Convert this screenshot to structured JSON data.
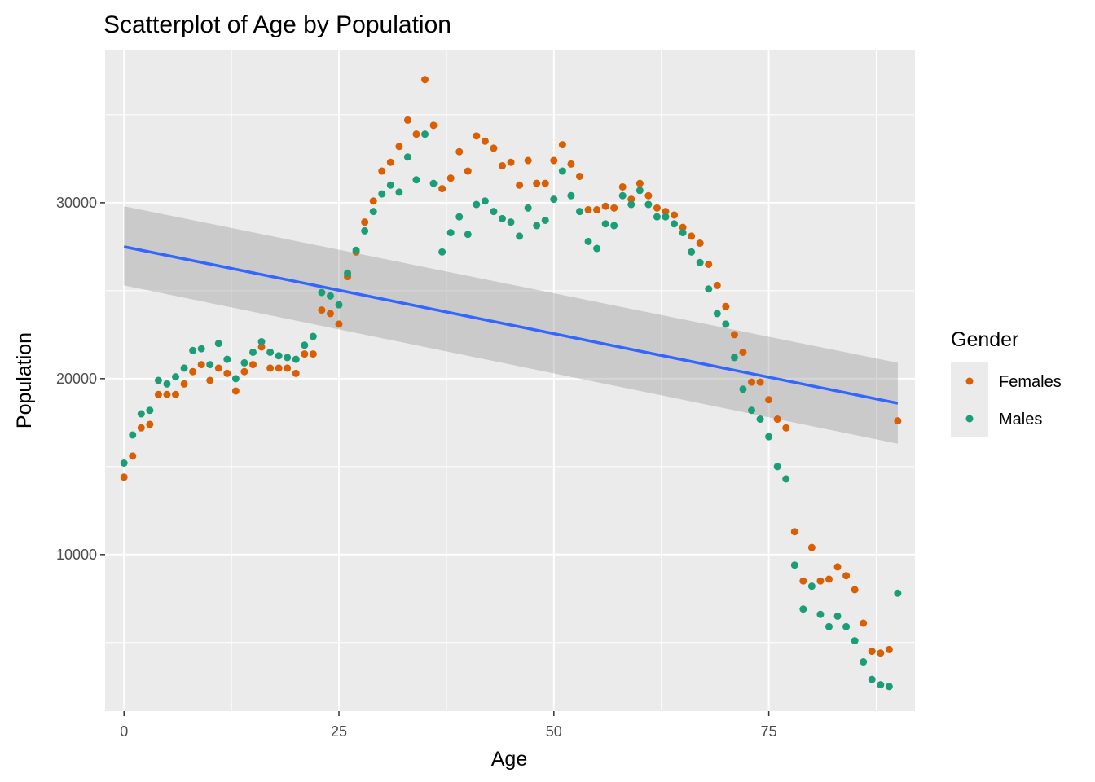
{
  "chart_data": {
    "type": "scatter",
    "title": "Scatterplot of Age by Population",
    "xlabel": "Age",
    "ylabel": "Population",
    "xlim": [
      -2.2,
      92
    ],
    "ylim": [
      1100,
      38700
    ],
    "x_ticks": [
      0,
      25,
      50,
      75
    ],
    "y_ticks": [
      10000,
      20000,
      30000
    ],
    "grid": true,
    "legend": {
      "title": "Gender",
      "position": "right"
    },
    "series": [
      {
        "name": "Females",
        "color": "#D95F02",
        "points": [
          [
            0,
            14400
          ],
          [
            1,
            15600
          ],
          [
            2,
            17200
          ],
          [
            3,
            17400
          ],
          [
            4,
            19100
          ],
          [
            5,
            19100
          ],
          [
            6,
            19100
          ],
          [
            7,
            19700
          ],
          [
            8,
            20400
          ],
          [
            9,
            20800
          ],
          [
            10,
            19900
          ],
          [
            11,
            20600
          ],
          [
            12,
            20300
          ],
          [
            13,
            19300
          ],
          [
            14,
            20400
          ],
          [
            15,
            20800
          ],
          [
            16,
            21800
          ],
          [
            17,
            20600
          ],
          [
            18,
            20600
          ],
          [
            19,
            20600
          ],
          [
            20,
            20300
          ],
          [
            21,
            21400
          ],
          [
            22,
            21400
          ],
          [
            23,
            23900
          ],
          [
            24,
            23700
          ],
          [
            25,
            23100
          ],
          [
            26,
            25800
          ],
          [
            27,
            27200
          ],
          [
            28,
            28900
          ],
          [
            29,
            30100
          ],
          [
            30,
            31800
          ],
          [
            31,
            32300
          ],
          [
            32,
            33200
          ],
          [
            33,
            34700
          ],
          [
            34,
            33900
          ],
          [
            35,
            37000
          ],
          [
            36,
            34400
          ],
          [
            37,
            30800
          ],
          [
            38,
            31400
          ],
          [
            39,
            32900
          ],
          [
            40,
            31800
          ],
          [
            41,
            33800
          ],
          [
            42,
            33500
          ],
          [
            43,
            33100
          ],
          [
            44,
            32100
          ],
          [
            45,
            32300
          ],
          [
            46,
            31000
          ],
          [
            47,
            32400
          ],
          [
            48,
            31100
          ],
          [
            49,
            31100
          ],
          [
            50,
            32400
          ],
          [
            51,
            33300
          ],
          [
            52,
            32200
          ],
          [
            53,
            31500
          ],
          [
            54,
            29600
          ],
          [
            55,
            29600
          ],
          [
            56,
            29800
          ],
          [
            57,
            29700
          ],
          [
            58,
            30900
          ],
          [
            59,
            30200
          ],
          [
            60,
            31100
          ],
          [
            61,
            30400
          ],
          [
            62,
            29700
          ],
          [
            63,
            29500
          ],
          [
            64,
            29300
          ],
          [
            65,
            28600
          ],
          [
            66,
            28100
          ],
          [
            67,
            27700
          ],
          [
            68,
            26500
          ],
          [
            69,
            25300
          ],
          [
            70,
            24100
          ],
          [
            71,
            22500
          ],
          [
            72,
            21500
          ],
          [
            73,
            19800
          ],
          [
            74,
            19800
          ],
          [
            75,
            18800
          ],
          [
            76,
            17700
          ],
          [
            77,
            17200
          ],
          [
            78,
            11300
          ],
          [
            79,
            8500
          ],
          [
            80,
            10400
          ],
          [
            81,
            8500
          ],
          [
            82,
            8600
          ],
          [
            83,
            9300
          ],
          [
            84,
            8800
          ],
          [
            85,
            8000
          ],
          [
            86,
            6100
          ],
          [
            87,
            4500
          ],
          [
            88,
            4400
          ],
          [
            89,
            4600
          ],
          [
            90,
            17600
          ]
        ]
      },
      {
        "name": "Males",
        "color": "#1B9E77",
        "points": [
          [
            0,
            15200
          ],
          [
            1,
            16800
          ],
          [
            2,
            18000
          ],
          [
            3,
            18200
          ],
          [
            4,
            19900
          ],
          [
            5,
            19700
          ],
          [
            6,
            20100
          ],
          [
            7,
            20600
          ],
          [
            8,
            21600
          ],
          [
            9,
            21700
          ],
          [
            10,
            20800
          ],
          [
            11,
            22000
          ],
          [
            12,
            21100
          ],
          [
            13,
            20000
          ],
          [
            14,
            20900
          ],
          [
            15,
            21500
          ],
          [
            16,
            22100
          ],
          [
            17,
            21500
          ],
          [
            18,
            21300
          ],
          [
            19,
            21200
          ],
          [
            20,
            21100
          ],
          [
            21,
            21900
          ],
          [
            22,
            22400
          ],
          [
            23,
            24900
          ],
          [
            24,
            24700
          ],
          [
            25,
            24200
          ],
          [
            26,
            26000
          ],
          [
            27,
            27300
          ],
          [
            28,
            28400
          ],
          [
            29,
            29500
          ],
          [
            30,
            30500
          ],
          [
            31,
            31000
          ],
          [
            32,
            30600
          ],
          [
            33,
            32600
          ],
          [
            34,
            31300
          ],
          [
            35,
            33900
          ],
          [
            36,
            31100
          ],
          [
            37,
            27200
          ],
          [
            38,
            28300
          ],
          [
            39,
            29200
          ],
          [
            40,
            28200
          ],
          [
            41,
            29900
          ],
          [
            42,
            30100
          ],
          [
            43,
            29500
          ],
          [
            44,
            29100
          ],
          [
            45,
            28900
          ],
          [
            46,
            28100
          ],
          [
            47,
            29700
          ],
          [
            48,
            28700
          ],
          [
            49,
            29000
          ],
          [
            50,
            30200
          ],
          [
            51,
            31800
          ],
          [
            52,
            30400
          ],
          [
            53,
            29500
          ],
          [
            54,
            27800
          ],
          [
            55,
            27400
          ],
          [
            56,
            28800
          ],
          [
            57,
            28700
          ],
          [
            58,
            30400
          ],
          [
            59,
            29900
          ],
          [
            60,
            30700
          ],
          [
            61,
            29900
          ],
          [
            62,
            29200
          ],
          [
            63,
            29200
          ],
          [
            64,
            28800
          ],
          [
            65,
            28300
          ],
          [
            66,
            27200
          ],
          [
            67,
            26600
          ],
          [
            68,
            25100
          ],
          [
            69,
            23700
          ],
          [
            70,
            23100
          ],
          [
            71,
            21200
          ],
          [
            72,
            19400
          ],
          [
            73,
            18200
          ],
          [
            74,
            17700
          ],
          [
            75,
            16700
          ],
          [
            76,
            15000
          ],
          [
            77,
            14300
          ],
          [
            78,
            9400
          ],
          [
            79,
            6900
          ],
          [
            80,
            8200
          ],
          [
            81,
            6600
          ],
          [
            82,
            5900
          ],
          [
            83,
            6500
          ],
          [
            84,
            5900
          ],
          [
            85,
            5100
          ],
          [
            86,
            3900
          ],
          [
            87,
            2900
          ],
          [
            88,
            2600
          ],
          [
            89,
            2500
          ],
          [
            90,
            7800
          ]
        ]
      }
    ],
    "trend_line": {
      "method": "linear",
      "color": "#3366FF",
      "ribbon_color": "#999999",
      "x": [
        0,
        90
      ],
      "y": [
        27500,
        18600
      ],
      "ci_lower": [
        25300,
        16300
      ],
      "ci_upper": [
        29800,
        20900
      ]
    }
  }
}
